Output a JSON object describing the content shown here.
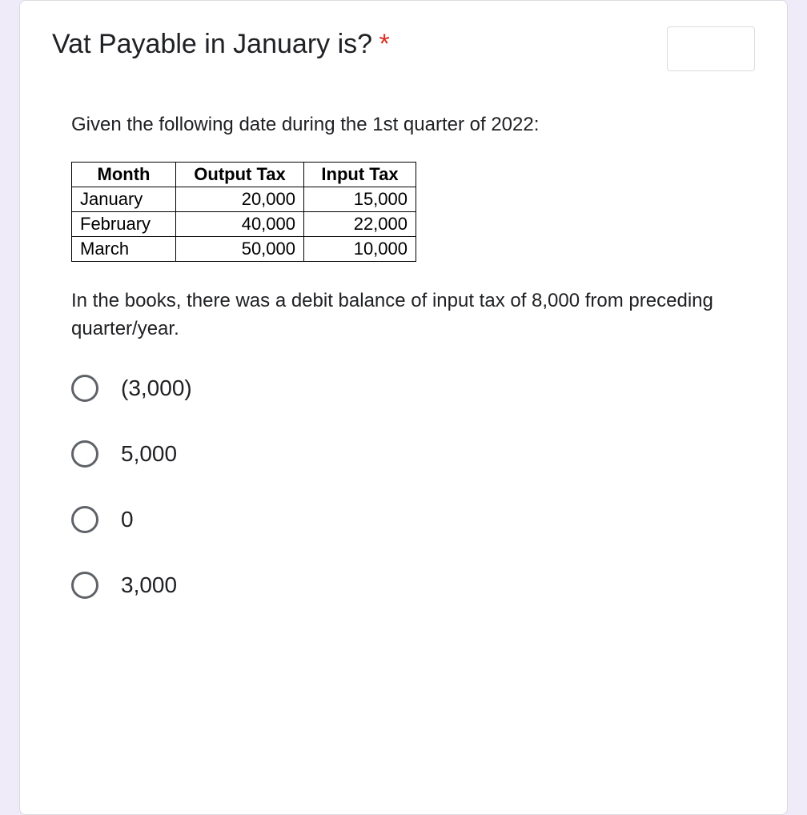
{
  "question": {
    "title": "Vat Payable in January is?",
    "required_marker": "*",
    "intro": "Given the following date during the 1st quarter of 2022:",
    "note": "In the books, there was a debit balance of input tax of 8,000 from preceding quarter/year."
  },
  "table": {
    "columns": [
      "Month",
      "Output Tax",
      "Input Tax"
    ],
    "rows": [
      [
        "January",
        "20,000",
        "15,000"
      ],
      [
        "February",
        "40,000",
        "22,000"
      ],
      [
        "March",
        "50,000",
        "10,000"
      ]
    ],
    "column_align": [
      "left",
      "right",
      "right"
    ],
    "border_color": "#000000",
    "font_size": 22
  },
  "options": [
    {
      "label": "(3,000)"
    },
    {
      "label": "5,000"
    },
    {
      "label": "0"
    },
    {
      "label": "3,000"
    }
  ],
  "styling": {
    "page_background": "#f0ebf8",
    "card_background": "#ffffff",
    "card_border": "#dadce0",
    "text_color": "#202124",
    "asterisk_color": "#d93025",
    "radio_border_color": "#5f6368",
    "title_fontsize": 34,
    "body_fontsize": 24,
    "option_fontsize": 28
  }
}
